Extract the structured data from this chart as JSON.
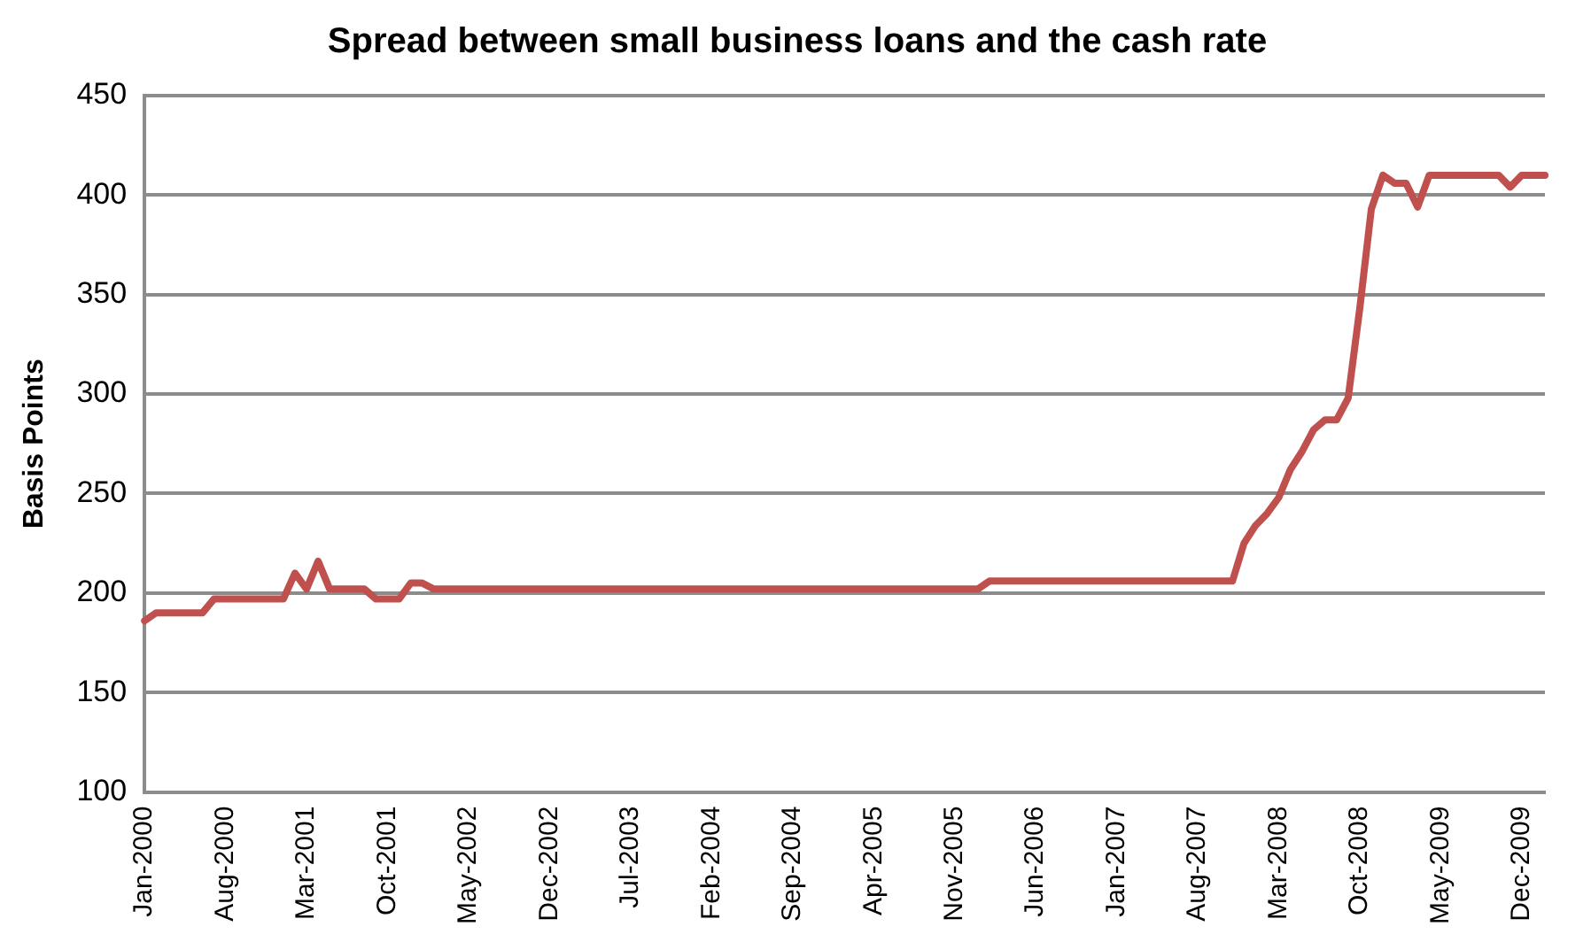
{
  "chart_data": {
    "type": "line",
    "title": "Spread between small business loans and the cash rate",
    "ylabel": "Basis Points",
    "categories": [
      "Jan-2000",
      null,
      null,
      null,
      null,
      null,
      null,
      "Aug-2000",
      null,
      null,
      null,
      null,
      null,
      null,
      "Mar-2001",
      null,
      null,
      null,
      null,
      null,
      null,
      "Oct-2001",
      null,
      null,
      null,
      null,
      null,
      null,
      "May-2002",
      null,
      null,
      null,
      null,
      null,
      null,
      "Dec-2002",
      null,
      null,
      null,
      null,
      null,
      null,
      "Jul-2003",
      null,
      null,
      null,
      null,
      null,
      null,
      "Feb-2004",
      null,
      null,
      null,
      null,
      null,
      null,
      "Sep-2004",
      null,
      null,
      null,
      null,
      null,
      null,
      "Apr-2005",
      null,
      null,
      null,
      null,
      null,
      null,
      "Nov-2005",
      null,
      null,
      null,
      null,
      null,
      null,
      "Jun-2006",
      null,
      null,
      null,
      null,
      null,
      null,
      "Jan-2007",
      null,
      null,
      null,
      null,
      null,
      null,
      "Aug-2007",
      null,
      null,
      null,
      null,
      null,
      null,
      "Mar-2008",
      null,
      null,
      null,
      null,
      null,
      null,
      "Oct-2008",
      null,
      null,
      null,
      null,
      null,
      null,
      "May-2009",
      null,
      null,
      null,
      null,
      null,
      null,
      "Dec-2009",
      null,
      null
    ],
    "series": [
      {
        "color": "#c0504d",
        "values": [
          186,
          190,
          190,
          190,
          190,
          190,
          197,
          197,
          197,
          197,
          197,
          197,
          197,
          210,
          202,
          216,
          202,
          202,
          202,
          202,
          197,
          197,
          197,
          205,
          205,
          202,
          202,
          202,
          202,
          202,
          202,
          202,
          202,
          202,
          202,
          202,
          202,
          202,
          202,
          202,
          202,
          202,
          202,
          202,
          202,
          202,
          202,
          202,
          202,
          202,
          202,
          202,
          202,
          202,
          202,
          202,
          202,
          202,
          202,
          202,
          202,
          202,
          202,
          202,
          202,
          202,
          202,
          202,
          202,
          202,
          202,
          202,
          202,
          206,
          206,
          206,
          206,
          206,
          206,
          206,
          206,
          206,
          206,
          206,
          206,
          206,
          206,
          206,
          206,
          206,
          206,
          206,
          206,
          206,
          206,
          225,
          234,
          240,
          248,
          262,
          271,
          282,
          287,
          287,
          298,
          343,
          393,
          410,
          406,
          406,
          394,
          410,
          410,
          410,
          410,
          410,
          410,
          410,
          404,
          410,
          410,
          410
        ]
      }
    ],
    "ylim": [
      100,
      450
    ],
    "yticks": [
      100,
      150,
      200,
      250,
      300,
      350,
      400,
      450
    ],
    "grid": "y",
    "legend": false,
    "marker": "none",
    "line_style": "solid"
  }
}
